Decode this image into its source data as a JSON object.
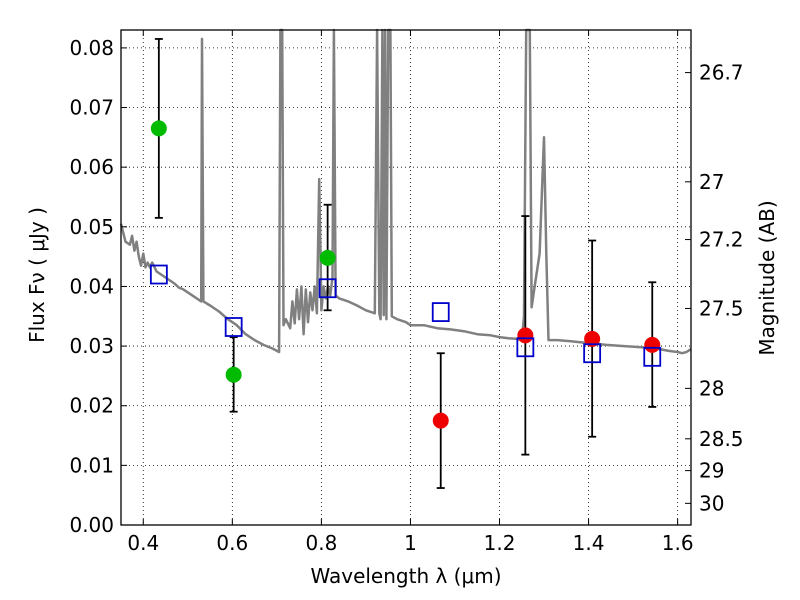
{
  "chart_data": {
    "type": "scatter",
    "xlabel": "Wavelength  λ (μm)",
    "ylabel": "Flux  Fν ( μJy )",
    "y2label": "Magnitude (AB)",
    "xlim": [
      0.35,
      1.63
    ],
    "ylim": [
      0.0,
      0.083
    ],
    "grid": true,
    "x_ticks": [
      0.4,
      0.6,
      0.8,
      1.0,
      1.2,
      1.4,
      1.6
    ],
    "x_tick_labels": [
      "0.4",
      "0.6",
      "0.8",
      "1",
      "1.2",
      "1.4",
      "1.6"
    ],
    "y_ticks": [
      0.0,
      0.01,
      0.02,
      0.03,
      0.04,
      0.05,
      0.06,
      0.07,
      0.08
    ],
    "y_tick_labels": [
      "0.00",
      "0.01",
      "0.02",
      "0.03",
      "0.04",
      "0.05",
      "0.06",
      "0.07",
      "0.08"
    ],
    "mag_ticks": [
      26.7,
      27,
      27.2,
      27.5,
      28,
      28.5,
      29,
      30
    ],
    "mag_tick_labels": [
      "26.7",
      "27",
      "27.2",
      "27.5",
      "28",
      "28.5",
      "29",
      "30"
    ],
    "colors": {
      "green": "#00bb00",
      "red": "#ee0000",
      "blue": "#0000cc",
      "model": "#808080",
      "error": "#000000"
    },
    "series": [
      {
        "marker": "circle-green",
        "x": [
          0.435,
          0.603,
          0.814
        ],
        "y": [
          0.0665,
          0.0252,
          0.0448
        ],
        "yerr_low": [
          0.0515,
          0.019,
          0.036
        ],
        "yerr_high": [
          0.0815,
          0.0315,
          0.0537
        ]
      },
      {
        "marker": "circle-red",
        "x": [
          1.068,
          1.258,
          1.408,
          1.543
        ],
        "y": [
          0.0175,
          0.0318,
          0.0312,
          0.0302
        ],
        "yerr_low": [
          0.0062,
          0.0118,
          0.0148,
          0.0198
        ],
        "yerr_high": [
          0.0288,
          0.0518,
          0.0477,
          0.0407
        ]
      },
      {
        "marker": "square-blue",
        "x": [
          0.435,
          0.603,
          0.814,
          1.068,
          1.258,
          1.408,
          1.543
        ],
        "y": [
          0.042,
          0.0332,
          0.0397,
          0.0357,
          0.0298,
          0.0288,
          0.0282
        ]
      }
    ],
    "model_spectrum": [
      [
        0.35,
        0.0505
      ],
      [
        0.36,
        0.0475
      ],
      [
        0.37,
        0.047
      ],
      [
        0.375,
        0.0485
      ],
      [
        0.38,
        0.046
      ],
      [
        0.385,
        0.0475
      ],
      [
        0.39,
        0.045
      ],
      [
        0.395,
        0.0435
      ],
      [
        0.4,
        0.0455
      ],
      [
        0.405,
        0.0432
      ],
      [
        0.41,
        0.044
      ],
      [
        0.415,
        0.0432
      ],
      [
        0.42,
        0.044
      ],
      [
        0.43,
        0.0425
      ],
      [
        0.44,
        0.042
      ],
      [
        0.45,
        0.0415
      ],
      [
        0.46,
        0.041
      ],
      [
        0.47,
        0.0405
      ],
      [
        0.48,
        0.0398
      ],
      [
        0.49,
        0.0395
      ],
      [
        0.5,
        0.039
      ],
      [
        0.51,
        0.0385
      ],
      [
        0.52,
        0.038
      ],
      [
        0.53,
        0.0375
      ],
      [
        0.532,
        0.0815
      ],
      [
        0.535,
        0.0375
      ],
      [
        0.55,
        0.0368
      ],
      [
        0.57,
        0.0358
      ],
      [
        0.59,
        0.0345
      ],
      [
        0.61,
        0.0335
      ],
      [
        0.63,
        0.032
      ],
      [
        0.65,
        0.031
      ],
      [
        0.67,
        0.0302
      ],
      [
        0.69,
        0.0296
      ],
      [
        0.705,
        0.029
      ],
      [
        0.708,
        0.083
      ],
      [
        0.712,
        0.083
      ],
      [
        0.715,
        0.0335
      ],
      [
        0.72,
        0.0345
      ],
      [
        0.73,
        0.033
      ],
      [
        0.735,
        0.0375
      ],
      [
        0.74,
        0.0338
      ],
      [
        0.745,
        0.0395
      ],
      [
        0.75,
        0.0345
      ],
      [
        0.755,
        0.04
      ],
      [
        0.76,
        0.032
      ],
      [
        0.765,
        0.0395
      ],
      [
        0.77,
        0.034
      ],
      [
        0.775,
        0.039
      ],
      [
        0.78,
        0.036
      ],
      [
        0.785,
        0.04
      ],
      [
        0.79,
        0.0355
      ],
      [
        0.795,
        0.058
      ],
      [
        0.8,
        0.036
      ],
      [
        0.805,
        0.04
      ],
      [
        0.81,
        0.038
      ],
      [
        0.815,
        0.04
      ],
      [
        0.82,
        0.0385
      ],
      [
        0.825,
        0.0415
      ],
      [
        0.828,
        0.083
      ],
      [
        0.832,
        0.0385
      ],
      [
        0.84,
        0.038
      ],
      [
        0.86,
        0.0375
      ],
      [
        0.88,
        0.0368
      ],
      [
        0.9,
        0.036
      ],
      [
        0.92,
        0.0355
      ],
      [
        0.925,
        0.083
      ],
      [
        0.93,
        0.0355
      ],
      [
        0.933,
        0.0345
      ],
      [
        0.937,
        0.083
      ],
      [
        0.94,
        0.0352
      ],
      [
        0.943,
        0.083
      ],
      [
        0.946,
        0.0345
      ],
      [
        0.95,
        0.083
      ],
      [
        0.955,
        0.083
      ],
      [
        0.958,
        0.035
      ],
      [
        0.97,
        0.0345
      ],
      [
        0.99,
        0.034
      ],
      [
        1.0,
        0.0335
      ],
      [
        1.03,
        0.0335
      ],
      [
        1.06,
        0.033
      ],
      [
        1.09,
        0.0328
      ],
      [
        1.12,
        0.0325
      ],
      [
        1.15,
        0.032
      ],
      [
        1.18,
        0.0318
      ],
      [
        1.2,
        0.0315
      ],
      [
        1.22,
        0.0313
      ],
      [
        1.24,
        0.0312
      ],
      [
        1.25,
        0.031
      ],
      [
        1.255,
        0.035
      ],
      [
        1.26,
        0.083
      ],
      [
        1.268,
        0.083
      ],
      [
        1.272,
        0.0365
      ],
      [
        1.28,
        0.0405
      ],
      [
        1.29,
        0.0455
      ],
      [
        1.3,
        0.065
      ],
      [
        1.305,
        0.0455
      ],
      [
        1.31,
        0.031
      ],
      [
        1.33,
        0.031
      ],
      [
        1.36,
        0.0308
      ],
      [
        1.4,
        0.0305
      ],
      [
        1.44,
        0.0302
      ],
      [
        1.48,
        0.03
      ],
      [
        1.52,
        0.0298
      ],
      [
        1.56,
        0.0295
      ],
      [
        1.58,
        0.0292
      ],
      [
        1.6,
        0.029
      ],
      [
        1.61,
        0.0288
      ],
      [
        1.62,
        0.029
      ],
      [
        1.63,
        0.0295
      ]
    ]
  }
}
